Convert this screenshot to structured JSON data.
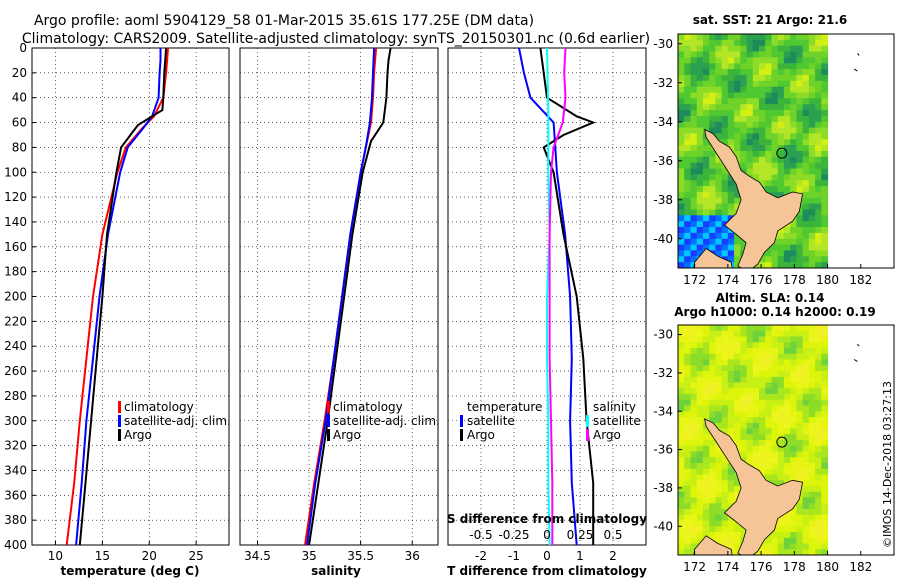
{
  "title": {
    "line1": "Argo profile: aoml 5904129_58 01-Mar-2015 35.61S 177.25E (DM data)",
    "line2": "Climatology: CARS2009. Satellite-adjusted climatology: synTS_20150301.nc (0.6d earlier)"
  },
  "watermark": "©IMOS 14-Dec-2018 03:27:13",
  "colors": {
    "climatology": "#ff0000",
    "satellite": "#0000ff",
    "argo": "#000000",
    "t_diff": "#000000",
    "s_diff": "#ff00ff",
    "s_sat": "#00ffff",
    "land": "#f5c497"
  },
  "chart_data": [
    {
      "type": "line",
      "id": "temperature",
      "xlabel": "temperature (deg C)",
      "ylabel": "",
      "xlim": [
        7.5,
        28.5
      ],
      "ylim": [
        400,
        0
      ],
      "xticks": [
        "10",
        "15",
        "20",
        "25"
      ],
      "yticks": [
        "0",
        "20",
        "40",
        "60",
        "80",
        "100",
        "120",
        "140",
        "160",
        "180",
        "200",
        "220",
        "240",
        "260",
        "280",
        "300",
        "320",
        "340",
        "360",
        "380",
        "400"
      ],
      "legend": [
        "climatology",
        "satellite-adj. clim.",
        "Argo"
      ],
      "series": [
        {
          "name": "climatology",
          "color": "#ff0000",
          "depth": [
            0,
            10,
            20,
            40,
            55,
            65,
            80,
            100,
            150,
            200,
            250,
            300,
            350,
            400
          ],
          "values": [
            22.0,
            21.9,
            21.8,
            21.5,
            20.5,
            19.2,
            17.5,
            16.6,
            15.0,
            14.0,
            13.3,
            12.6,
            12.0,
            11.2
          ]
        },
        {
          "name": "satellite-adj. clim.",
          "color": "#0000ff",
          "depth": [
            0,
            10,
            20,
            40,
            55,
            65,
            80,
            100,
            150,
            200,
            250,
            300,
            350,
            400
          ],
          "values": [
            21.2,
            21.2,
            21.1,
            21.0,
            20.3,
            19.3,
            17.7,
            16.9,
            15.6,
            14.7,
            14.0,
            13.3,
            12.8,
            12.2
          ]
        },
        {
          "name": "Argo",
          "color": "#000000",
          "depth": [
            0,
            10,
            20,
            40,
            50,
            62,
            80,
            100,
            150,
            200,
            250,
            300,
            350,
            400
          ],
          "values": [
            21.8,
            21.7,
            21.6,
            21.5,
            21.4,
            18.8,
            17.0,
            16.5,
            15.5,
            15.0,
            14.4,
            13.8,
            13.2,
            12.6
          ]
        }
      ]
    },
    {
      "type": "line",
      "id": "salinity",
      "xlabel": "salinity",
      "ylabel": "",
      "xlim": [
        34.33,
        36.25
      ],
      "ylim": [
        400,
        0
      ],
      "xticks": [
        "34.5",
        "35",
        "35.5",
        "36"
      ],
      "legend": [
        "climatology",
        "satellite-adj. clim.",
        "Argo"
      ],
      "series": [
        {
          "name": "climatology",
          "color": "#ff0000",
          "depth": [
            0,
            20,
            40,
            60,
            80,
            100,
            150,
            200,
            250,
            300,
            350,
            400
          ],
          "values": [
            35.65,
            35.63,
            35.62,
            35.6,
            35.55,
            35.5,
            35.4,
            35.32,
            35.24,
            35.15,
            35.05,
            34.96
          ]
        },
        {
          "name": "satellite-adj. clim.",
          "color": "#0000ff",
          "depth": [
            0,
            20,
            40,
            60,
            80,
            100,
            150,
            200,
            250,
            300,
            350,
            400
          ],
          "values": [
            35.63,
            35.62,
            35.61,
            35.59,
            35.55,
            35.5,
            35.4,
            35.32,
            35.24,
            35.16,
            35.06,
            34.98
          ]
        },
        {
          "name": "Argo",
          "color": "#000000",
          "depth": [
            0,
            10,
            20,
            40,
            60,
            75,
            100,
            150,
            200,
            250,
            300,
            350,
            400
          ],
          "values": [
            35.79,
            35.77,
            35.76,
            35.75,
            35.72,
            35.6,
            35.52,
            35.42,
            35.34,
            35.26,
            35.18,
            35.09,
            35.0
          ]
        }
      ]
    },
    {
      "type": "line",
      "id": "differences",
      "xlabel": "T difference from climatology",
      "x2label": "S difference from climatology",
      "xlim": [
        -3,
        3
      ],
      "x2lim": [
        -0.75,
        0.75
      ],
      "ylim": [
        400,
        0
      ],
      "xticks": [
        "-2",
        "-1",
        "0",
        "1",
        "2"
      ],
      "x2ticks": [
        "-0.5",
        "-0.25",
        "0",
        "0.25",
        "0.5"
      ],
      "legend_left_title": "temperature",
      "legend_right_title": "salinity",
      "legend_left": [
        "satellite",
        "Argo"
      ],
      "legend_right": [
        "satellite",
        "Argo"
      ],
      "series": [
        {
          "name": "T satellite",
          "axis": "T",
          "color": "#0000ff",
          "depth": [
            0,
            20,
            40,
            60,
            80,
            100,
            150,
            200,
            250,
            300,
            350,
            400
          ],
          "values": [
            -0.85,
            -0.7,
            -0.5,
            0.2,
            0.25,
            0.3,
            0.55,
            0.7,
            0.75,
            0.7,
            0.75,
            0.9
          ]
        },
        {
          "name": "T Argo",
          "axis": "T",
          "color": "#000000",
          "depth": [
            0,
            20,
            40,
            55,
            60,
            70,
            80,
            100,
            150,
            200,
            250,
            300,
            350,
            400
          ],
          "values": [
            -0.2,
            -0.1,
            0.0,
            0.9,
            1.4,
            0.5,
            -0.1,
            0.2,
            0.5,
            0.9,
            1.1,
            1.2,
            1.4,
            1.4
          ]
        },
        {
          "name": "S satellite",
          "axis": "S",
          "color": "#00ffff",
          "depth": [
            0,
            50,
            100,
            150,
            200,
            250,
            300,
            350,
            400
          ],
          "values": [
            0.0,
            0.01,
            0.01,
            0.02,
            0.0,
            0.0,
            0.01,
            0.01,
            0.02
          ]
        },
        {
          "name": "S Argo",
          "axis": "S",
          "color": "#ff00ff",
          "depth": [
            0,
            20,
            40,
            60,
            80,
            100,
            150,
            200,
            250,
            300,
            350,
            400
          ],
          "values": [
            0.14,
            0.13,
            0.14,
            0.12,
            0.05,
            0.03,
            0.02,
            0.02,
            0.02,
            0.03,
            0.04,
            0.04
          ]
        }
      ]
    },
    {
      "type": "heatmap",
      "id": "sst-map",
      "title": "sat. SST: 21 Argo: 21.6",
      "xticks": [
        "172",
        "174",
        "176",
        "178",
        "180",
        "182"
      ],
      "yticks": [
        "-30",
        "-32",
        "-34",
        "-36",
        "-38",
        "-40"
      ],
      "xlim": [
        171,
        184
      ],
      "ylim": [
        -41.5,
        -29.5
      ],
      "argo_position": {
        "lon": 177.25,
        "lat": -35.61
      }
    },
    {
      "type": "heatmap",
      "id": "sla-map",
      "title": "Altim. SLA: 0.14",
      "subtitle": "Argo h1000: 0.14 h2000: 0.19",
      "xticks": [
        "172",
        "174",
        "176",
        "178",
        "180",
        "182"
      ],
      "yticks": [
        "-30",
        "-32",
        "-34",
        "-36",
        "-38",
        "-40"
      ],
      "xlim": [
        171,
        184
      ],
      "ylim": [
        -41.5,
        -29.5
      ],
      "argo_position": {
        "lon": 177.25,
        "lat": -35.61
      }
    }
  ]
}
